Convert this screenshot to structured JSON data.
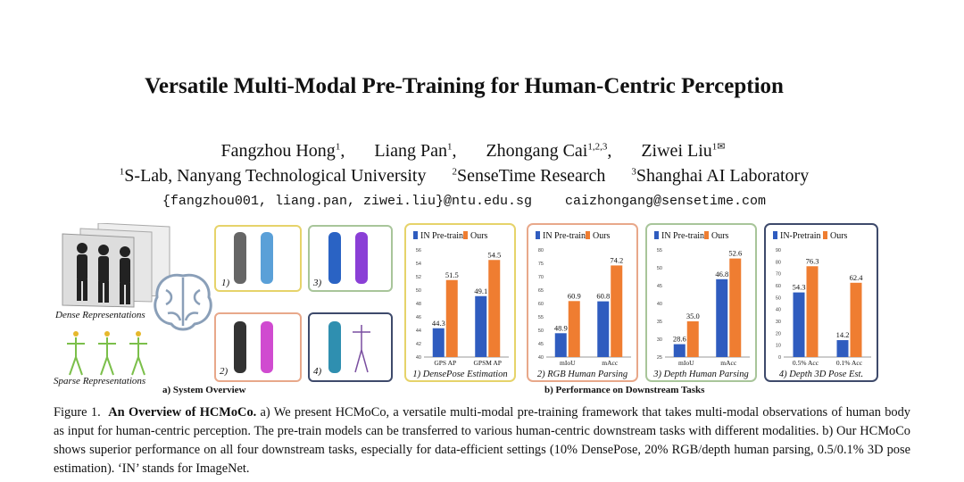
{
  "paper": {
    "title": "Versatile Multi-Modal Pre-Training for Human-Centric Perception",
    "authors": [
      {
        "name": "Fangzhou Hong",
        "sup": "1"
      },
      {
        "name": "Liang Pan",
        "sup": "1"
      },
      {
        "name": "Zhongang Cai",
        "sup": "1,2,3"
      },
      {
        "name": "Ziwei Liu",
        "sup": "1",
        "mail": "✉"
      }
    ],
    "affiliations": [
      {
        "sup": "1",
        "name": "S-Lab, Nanyang Technological University"
      },
      {
        "sup": "2",
        "name": "SenseTime Research"
      },
      {
        "sup": "3",
        "name": "Shanghai AI Laboratory"
      }
    ],
    "emails": [
      "{fangzhou001, liang.pan, ziwei.liu}@ntu.edu.sg",
      "caizhongang@sensetime.com"
    ]
  },
  "figure": {
    "dense_label": "Dense Representations",
    "sparse_label": "Sparse Representations",
    "system_overview": "a) System Overview",
    "performance": "b) Performance on Downstream Tasks",
    "panel_nums": [
      "1)",
      "2)",
      "3)",
      "4)"
    ],
    "colors": {
      "baseline": "#2f5cbf",
      "ours": "#ef7d31",
      "box1": "#e6d36a",
      "box2": "#e8a88a",
      "box3": "#a8c59a",
      "box4": "#3e4a6b"
    }
  },
  "chart_data": [
    {
      "type": "bar",
      "title": "1) DensePose Estimation",
      "categories": [
        "GPS AP",
        "GPSM AP"
      ],
      "series": [
        {
          "name": "IN Pre-train",
          "values": [
            44.3,
            49.1
          ]
        },
        {
          "name": "Ours",
          "values": [
            51.5,
            54.5
          ]
        }
      ],
      "ylim": [
        40,
        56
      ],
      "yticks": [
        40,
        42,
        44,
        46,
        48,
        50,
        52,
        54,
        56
      ]
    },
    {
      "type": "bar",
      "title": "2) RGB Human Parsing",
      "categories": [
        "mIoU",
        "mAcc"
      ],
      "series": [
        {
          "name": "IN Pre-train",
          "values": [
            48.9,
            60.8
          ]
        },
        {
          "name": "Ours",
          "values": [
            60.9,
            74.2
          ]
        }
      ],
      "ylim": [
        40,
        80
      ],
      "yticks": [
        40,
        45,
        50,
        55,
        60,
        65,
        70,
        75,
        80
      ]
    },
    {
      "type": "bar",
      "title": "3) Depth Human Parsing",
      "categories": [
        "mIoU",
        "mAcc"
      ],
      "series": [
        {
          "name": "IN Pre-train",
          "values": [
            28.6,
            46.8
          ]
        },
        {
          "name": "Ours",
          "values": [
            35.0,
            52.6
          ]
        }
      ],
      "ylim": [
        25,
        55
      ],
      "yticks": [
        25,
        30,
        35,
        40,
        45,
        50,
        55
      ]
    },
    {
      "type": "bar",
      "title": "4) Depth 3D Pose Est.",
      "categories": [
        "0.5% Acc",
        "0.1% Acc"
      ],
      "series": [
        {
          "name": "IN-Pretrain",
          "values": [
            54.3,
            14.2
          ]
        },
        {
          "name": "Ours",
          "values": [
            76.3,
            62.4
          ]
        }
      ],
      "ylim": [
        0,
        90
      ],
      "yticks": [
        0,
        10,
        20,
        30,
        40,
        50,
        60,
        70,
        80,
        90
      ]
    }
  ],
  "caption": {
    "prefix": "Figure 1.",
    "bold": "An Overview of HCMoCo.",
    "text": " a) We present HCMoCo, a versatile multi-modal pre-training framework that takes multi-modal observations of human body as input for human-centric perception.  The pre-train models can be transferred to various human-centric downstream tasks with different modalities.  b) Our HCMoCo shows superior performance on all four downstream tasks, especially for data-efficient settings (10% DensePose, 20% RGB/depth human parsing, 0.5/0.1% 3D pose estimation). ‘IN’ stands for ImageNet."
  }
}
